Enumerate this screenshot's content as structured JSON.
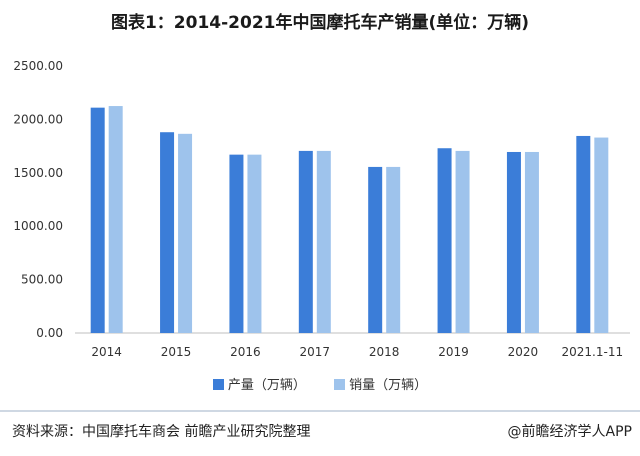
{
  "chart_data": {
    "type": "bar",
    "title": "图表1：2014-2021年中国摩托车产销量(单位：万辆)",
    "categories": [
      "2014",
      "2015",
      "2016",
      "2017",
      "2018",
      "2019",
      "2020",
      "2021.1-11"
    ],
    "series": [
      {
        "name": "产量（万辆）",
        "color": "#3b7dd8",
        "values": [
          2110,
          1880,
          1670,
          1705,
          1555,
          1730,
          1695,
          1845
        ]
      },
      {
        "name": "销量（万辆）",
        "color": "#9ec3ec",
        "values": [
          2125,
          1865,
          1670,
          1705,
          1555,
          1705,
          1695,
          1830
        ]
      }
    ],
    "ylim": [
      0,
      2500
    ],
    "yticks": [
      "0.00",
      "500.00",
      "1000.00",
      "1500.00",
      "2000.00",
      "2500.00"
    ],
    "grid": false,
    "legend": "bottom"
  },
  "footer": {
    "source": "资料来源：中国摩托车商会 前瞻产业研究院整理",
    "credit": "@前瞻经济学人APP"
  }
}
